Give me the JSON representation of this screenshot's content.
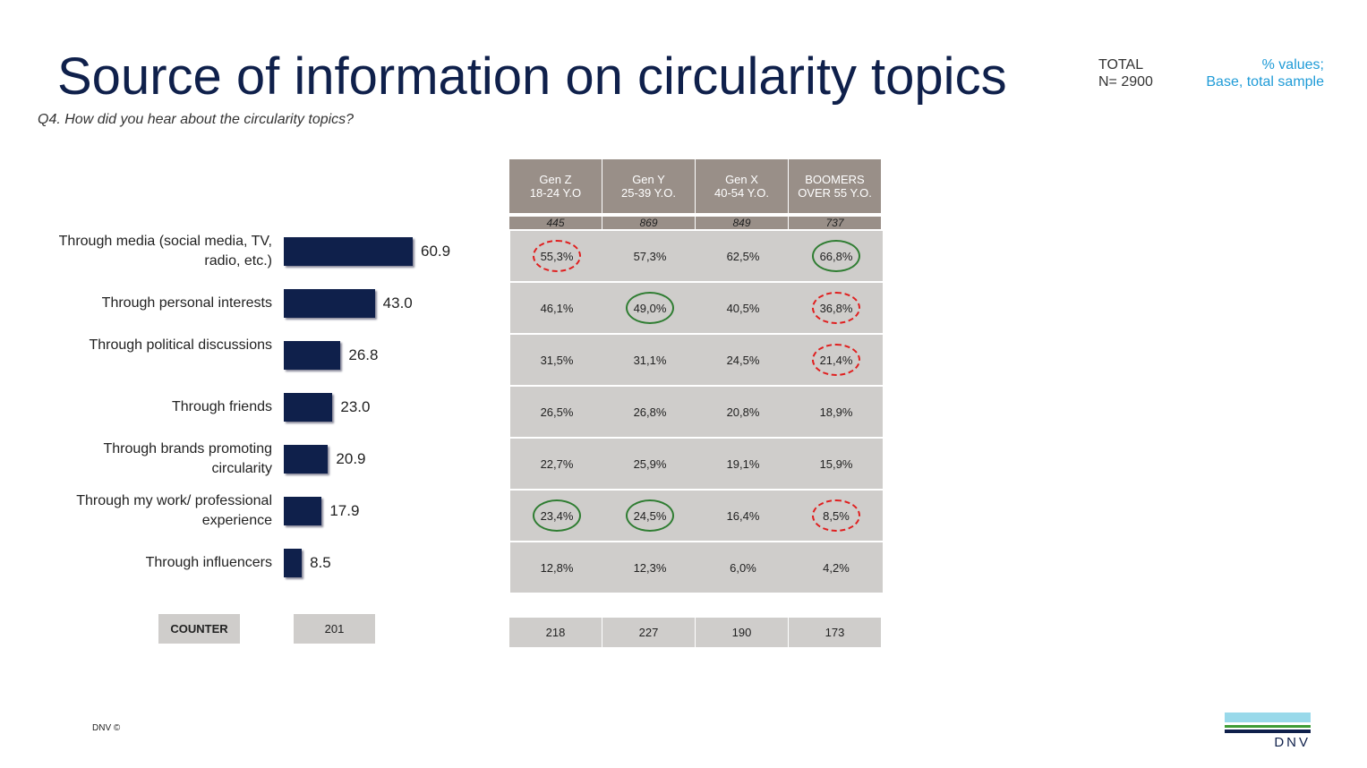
{
  "header": {
    "title": "Source of information on circularity topics",
    "question": "Q4. How did you hear about the circularity topics?",
    "total_label": "TOTAL",
    "total_n": "N= 2900",
    "note_line1": "% values;",
    "note_line2": "Base, total sample"
  },
  "chart_data": {
    "type": "bar",
    "orientation": "horizontal",
    "categories": [
      "Through media (social media, TV, radio, etc.)",
      "Through personal interests",
      "Through political discussions",
      "Through friends",
      "Through brands promoting circularity",
      "Through my work/ professional experience",
      "Through influencers"
    ],
    "values": [
      60.9,
      43.0,
      26.8,
      23.0,
      20.9,
      17.9,
      8.5
    ],
    "value_labels": [
      "60.9",
      "43.0",
      "26.8",
      "23.0",
      "20.9",
      "17.9",
      "8.5"
    ],
    "bar_color": "#0f204b"
  },
  "counter": {
    "label": "COUNTER",
    "total": "201"
  },
  "table": {
    "columns": [
      {
        "line1": "Gen Z",
        "line2": "18-24 Y.O",
        "n": "445",
        "counter": "218"
      },
      {
        "line1": "Gen Y",
        "line2": "25-39 Y.O.",
        "n": "869",
        "counter": "227"
      },
      {
        "line1": "Gen X",
        "line2": "40-54 Y.O.",
        "n": "849",
        "counter": "190"
      },
      {
        "line1": "BOOMERS",
        "line2": "OVER 55 Y.O.",
        "n": "737",
        "counter": "173"
      }
    ],
    "rows": [
      [
        "55,3%",
        "57,3%",
        "62,5%",
        "66,8%"
      ],
      [
        "46,1%",
        "49,0%",
        "40,5%",
        "36,8%"
      ],
      [
        "31,5%",
        "31,1%",
        "24,5%",
        "21,4%"
      ],
      [
        "26,5%",
        "26,8%",
        "20,8%",
        "18,9%"
      ],
      [
        "22,7%",
        "25,9%",
        "19,1%",
        "15,9%"
      ],
      [
        "23,4%",
        "24,5%",
        "16,4%",
        "8,5%"
      ],
      [
        "12,8%",
        "12,3%",
        "6,0%",
        "4,2%"
      ]
    ],
    "highlights": [
      [
        "red",
        "",
        "",
        "green"
      ],
      [
        "",
        "green",
        "",
        "red"
      ],
      [
        "",
        "",
        "",
        "red"
      ],
      [
        "",
        "",
        "",
        ""
      ],
      [
        "",
        "",
        "",
        ""
      ],
      [
        "green",
        "green",
        "",
        "red"
      ],
      [
        "",
        "",
        "",
        ""
      ]
    ]
  },
  "footer": {
    "copyright": "DNV ©",
    "logo_text": "DNV"
  }
}
